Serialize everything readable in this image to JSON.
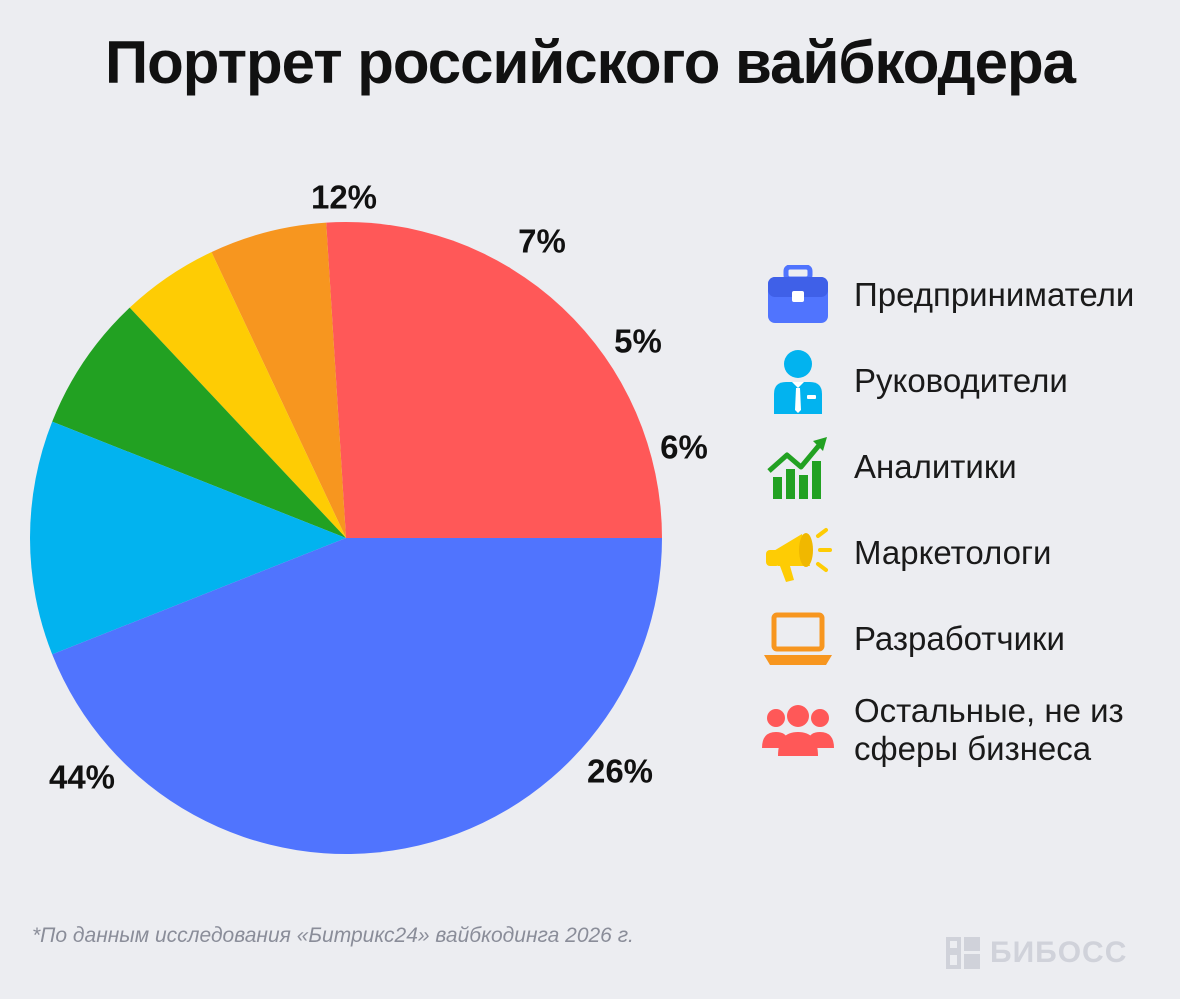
{
  "title": "Портрет российского вайбкодера",
  "chart_data": {
    "type": "pie",
    "title": "Портрет российского вайбкодера",
    "start_angle_deg": 0,
    "direction": "counterclockwise",
    "slices": [
      {
        "label": "Остальные, не из сферы бизнеса",
        "value": 26,
        "display": "26%",
        "color": "#ff5858",
        "icon": "people-icon"
      },
      {
        "label": "Разработчики",
        "value": 6,
        "display": "6%",
        "color": "#f7961f",
        "icon": "laptop-icon"
      },
      {
        "label": "Маркетологи",
        "value": 5,
        "display": "5%",
        "color": "#fecc04",
        "icon": "megaphone-icon"
      },
      {
        "label": "Аналитики",
        "value": 7,
        "display": "7%",
        "color": "#22a122",
        "icon": "growth-chart-icon"
      },
      {
        "label": "Руководители",
        "value": 12,
        "display": "12%",
        "color": "#02b3ef",
        "icon": "manager-icon"
      },
      {
        "label": "Предприниматели",
        "value": 44,
        "display": "44%",
        "color": "#5074fe",
        "icon": "briefcase-icon"
      }
    ],
    "legend_placement": "right"
  },
  "legend": [
    {
      "label": "Предприниматели",
      "icon": "briefcase-icon",
      "color": "#5074fe"
    },
    {
      "label": "Руководители",
      "icon": "manager-icon",
      "color": "#02b3ef"
    },
    {
      "label": "Аналитики",
      "icon": "growth-chart-icon",
      "color": "#22a122"
    },
    {
      "label": "Маркетологи",
      "icon": "megaphone-icon",
      "color": "#fecc04"
    },
    {
      "label": "Разработчики",
      "icon": "laptop-icon",
      "color": "#f7961f"
    },
    {
      "label": "Остальные, не из сферы бизнеса",
      "icon": "people-icon",
      "color": "#ff5858"
    }
  ],
  "footnote": "*По данным исследования «Битрикс24» вайбкодинга 2026 г.",
  "brand": {
    "name": "БИБОСС",
    "icon": "bb-logo-icon",
    "color": "#d0d2da"
  }
}
